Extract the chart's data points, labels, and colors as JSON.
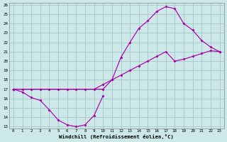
{
  "xlabel": "Windchill (Refroidissement éolien,°C)",
  "bg_color": "#cce8e8",
  "grid_color": "#aacccc",
  "line_color": "#aa00aa",
  "xlim": [
    -0.5,
    23.5
  ],
  "ylim": [
    12.8,
    26.2
  ],
  "xticks": [
    0,
    1,
    2,
    3,
    4,
    5,
    6,
    7,
    8,
    9,
    10,
    11,
    12,
    13,
    14,
    15,
    16,
    17,
    18,
    19,
    20,
    21,
    22,
    23
  ],
  "yticks": [
    13,
    14,
    15,
    16,
    17,
    18,
    19,
    20,
    21,
    22,
    23,
    24,
    25,
    26
  ],
  "line1_x": [
    0,
    1,
    2,
    3,
    4,
    5,
    6,
    7,
    8,
    9,
    10
  ],
  "line1_y": [
    17.0,
    16.7,
    16.1,
    15.8,
    14.8,
    13.7,
    13.2,
    13.0,
    13.2,
    14.2,
    16.3
  ],
  "line2_x": [
    0,
    1,
    2,
    3,
    4,
    5,
    6,
    7,
    8,
    9,
    10,
    11,
    12,
    13,
    14,
    15,
    16,
    17,
    18,
    19,
    20,
    21,
    22,
    23
  ],
  "line2_y": [
    17.0,
    17.0,
    17.0,
    17.0,
    17.0,
    17.0,
    17.0,
    17.0,
    17.0,
    17.0,
    17.5,
    18.0,
    18.5,
    19.0,
    19.5,
    20.0,
    20.5,
    21.0,
    20.0,
    20.2,
    20.5,
    20.8,
    21.1,
    21.0
  ],
  "line3_x": [
    0,
    10,
    11,
    12,
    13,
    14,
    15,
    16,
    17,
    18,
    19,
    20,
    21,
    22,
    23
  ],
  "line3_y": [
    17.0,
    17.0,
    18.0,
    20.4,
    22.0,
    23.5,
    24.3,
    25.3,
    25.8,
    25.6,
    24.0,
    23.3,
    22.2,
    21.5,
    21.0
  ]
}
